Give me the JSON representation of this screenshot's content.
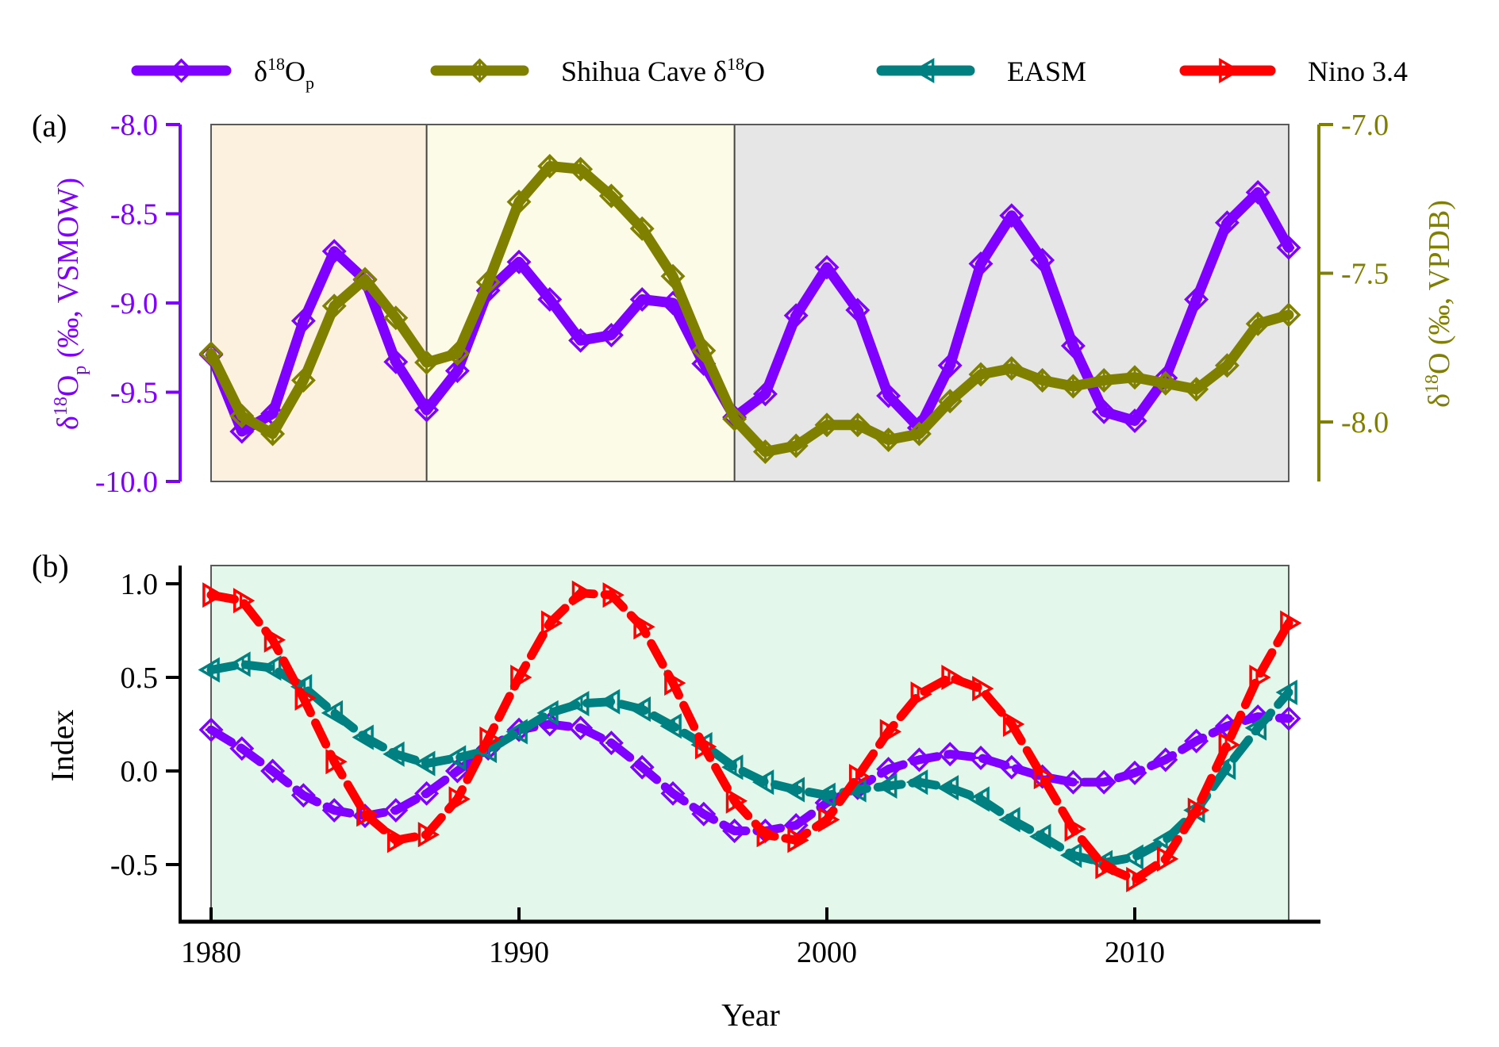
{
  "chart_data": {
    "type": "line",
    "panels": [
      {
        "id": "a",
        "panel_label": "(a)",
        "x": [
          1980,
          1981,
          1982,
          1983,
          1984,
          1985,
          1986,
          1987,
          1988,
          1989,
          1990,
          1991,
          1992,
          1993,
          1994,
          1995,
          1996,
          1997,
          1998,
          1999,
          2000,
          2001,
          2002,
          2003,
          2004,
          2005,
          2006,
          2007,
          2008,
          2009,
          2010,
          2011,
          2012,
          2013,
          2014,
          2015
        ],
        "xlim": [
          1980,
          2015
        ],
        "shaded_periods": [
          {
            "from": 1980,
            "to": 1987,
            "color": "#FBF1DE"
          },
          {
            "from": 1987,
            "to": 1997,
            "color": "#FBFBE8"
          },
          {
            "from": 1997,
            "to": 2015,
            "color": "#E6E6E6"
          }
        ],
        "left_axis": {
          "label_main": "δ",
          "label_sup": "18",
          "label_O": "O",
          "label_sub": "p",
          "label_rest": " (‰, VSMOW)",
          "ylim": [
            -10.0,
            -8.0
          ],
          "ticks": [
            -8.0,
            -8.5,
            -9.0,
            -9.5,
            -10.0
          ],
          "tick_labels": [
            "-8.0",
            "-8.5",
            "-9.0",
            "-9.5",
            "-10.0"
          ],
          "color": "#8000FF"
        },
        "right_axis": {
          "label_main": "δ",
          "label_sup": "18",
          "label_rest": "O (‰, VPDB)",
          "ylim": [
            -8.2,
            -7.0
          ],
          "ticks": [
            -7.0,
            -7.5,
            -8.0
          ],
          "tick_labels": [
            "-7.0",
            "-7.5",
            "-8.0"
          ],
          "color": "#808000"
        },
        "series": [
          {
            "name": "δ18Op",
            "axis": "left",
            "color": "#8000FF",
            "marker": "diamond",
            "values": [
              -9.29,
              -9.72,
              -9.62,
              -9.1,
              -8.71,
              -8.87,
              -9.33,
              -9.6,
              -9.38,
              -8.93,
              -8.77,
              -8.98,
              -9.21,
              -9.18,
              -8.98,
              -9.0,
              -9.34,
              -9.64,
              -9.51,
              -9.07,
              -8.8,
              -9.04,
              -9.52,
              -9.7,
              -9.35,
              -8.78,
              -8.51,
              -8.76,
              -9.24,
              -9.61,
              -9.66,
              -9.42,
              -8.98,
              -8.55,
              -8.38,
              -8.69
            ]
          },
          {
            "name": "Shihua Cave δ18O",
            "axis": "right",
            "color": "#808000",
            "marker": "diamond-vertical",
            "values": [
              -7.77,
              -7.98,
              -8.04,
              -7.86,
              -7.61,
              -7.52,
              -7.65,
              -7.8,
              -7.77,
              -7.53,
              -7.26,
              -7.14,
              -7.15,
              -7.24,
              -7.35,
              -7.51,
              -7.76,
              -7.99,
              -8.1,
              -8.08,
              -8.01,
              -8.01,
              -8.06,
              -8.04,
              -7.93,
              -7.84,
              -7.82,
              -7.86,
              -7.88,
              -7.86,
              -7.85,
              -7.87,
              -7.89,
              -7.81,
              -7.67,
              -7.64
            ]
          }
        ]
      },
      {
        "id": "b",
        "panel_label": "(b)",
        "x": [
          1980,
          1981,
          1982,
          1983,
          1984,
          1985,
          1986,
          1987,
          1988,
          1989,
          1990,
          1991,
          1992,
          1993,
          1994,
          1995,
          1996,
          1997,
          1998,
          1999,
          2000,
          2001,
          2002,
          2003,
          2004,
          2005,
          2006,
          2007,
          2008,
          2009,
          2010,
          2011,
          2012,
          2013,
          2014,
          2015
        ],
        "xlim": [
          1980,
          2015
        ],
        "background": "#E3F8EA",
        "ylabel": "Index",
        "ylim": [
          -0.65,
          1.1
        ],
        "yticks": [
          1.0,
          0.5,
          0.0,
          -0.5
        ],
        "ytick_labels": [
          "1.0",
          "0.5",
          "0.0",
          "-0.5"
        ],
        "xticks": [
          1980,
          1990,
          2000,
          2010
        ],
        "xtick_labels": [
          "1980",
          "1990",
          "2000",
          "2010"
        ],
        "xlabel": "Year",
        "series": [
          {
            "name": "δ18Op",
            "color": "#8000FF",
            "marker": "diamond",
            "values": [
              0.22,
              0.12,
              0.0,
              -0.13,
              -0.21,
              -0.24,
              -0.21,
              -0.12,
              0.0,
              0.12,
              0.22,
              0.25,
              0.23,
              0.15,
              0.02,
              -0.12,
              -0.23,
              -0.32,
              -0.32,
              -0.29,
              -0.17,
              -0.09,
              0.01,
              0.06,
              0.09,
              0.07,
              0.02,
              -0.03,
              -0.06,
              -0.06,
              -0.01,
              0.06,
              0.16,
              0.24,
              0.29,
              0.28
            ]
          },
          {
            "name": "EASM",
            "color": "#008080",
            "marker": "triangle-left",
            "values": [
              0.54,
              0.57,
              0.55,
              0.45,
              0.31,
              0.18,
              0.09,
              0.04,
              0.07,
              0.11,
              0.21,
              0.31,
              0.36,
              0.37,
              0.33,
              0.24,
              0.14,
              0.02,
              -0.06,
              -0.1,
              -0.13,
              -0.1,
              -0.08,
              -0.06,
              -0.09,
              -0.15,
              -0.26,
              -0.35,
              -0.45,
              -0.49,
              -0.46,
              -0.37,
              -0.21,
              0.02,
              0.23,
              0.42
            ]
          },
          {
            "name": "Nino 3.4",
            "color": "#FF0000",
            "marker": "triangle-right",
            "values": [
              0.94,
              0.91,
              0.7,
              0.39,
              0.05,
              -0.23,
              -0.37,
              -0.34,
              -0.15,
              0.17,
              0.5,
              0.79,
              0.95,
              0.94,
              0.77,
              0.47,
              0.13,
              -0.16,
              -0.34,
              -0.37,
              -0.26,
              -0.03,
              0.21,
              0.41,
              0.5,
              0.44,
              0.25,
              -0.03,
              -0.31,
              -0.51,
              -0.58,
              -0.47,
              -0.21,
              0.14,
              0.5,
              0.79
            ]
          }
        ]
      }
    ],
    "legend": {
      "placement": "top",
      "entries": [
        {
          "label_main": "δ",
          "label_sup": "18",
          "label_O": "O",
          "label_sub": "p",
          "label_rest": "",
          "color": "#8000FF",
          "marker": "diamond"
        },
        {
          "label_main": "Shihua Cave δ",
          "label_sup": "18",
          "label_O": "O",
          "label_sub": "",
          "label_rest": "",
          "color": "#808000",
          "marker": "diamond-vertical"
        },
        {
          "label_main": "EASM",
          "label_sup": "",
          "label_O": "",
          "label_sub": "",
          "label_rest": "",
          "color": "#008080",
          "marker": "triangle-left"
        },
        {
          "label_main": "Nino 3.4",
          "label_sup": "",
          "label_O": "",
          "label_sub": "",
          "label_rest": "",
          "color": "#FF0000",
          "marker": "triangle-right"
        }
      ]
    }
  }
}
